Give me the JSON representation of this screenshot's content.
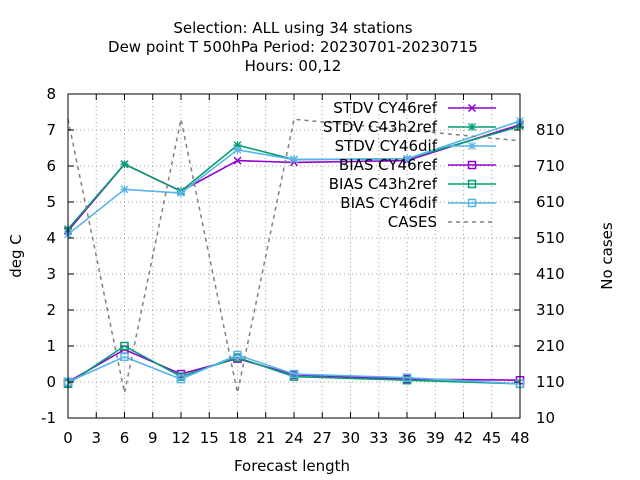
{
  "chart_data": {
    "type": "line",
    "title_lines": [
      "Selection: ALL using    34 stations",
      "Dew point T 500hPa   Period: 20230701-20230715",
      "Hours:  00,12"
    ],
    "xlabel": "Forecast length",
    "ylabel": "deg C",
    "y2label": "No cases",
    "xlim": [
      0,
      48
    ],
    "ylim": [
      -1,
      8
    ],
    "y2lim": [
      10,
      910
    ],
    "xticks": [
      0,
      3,
      6,
      9,
      12,
      15,
      18,
      21,
      24,
      27,
      30,
      33,
      36,
      39,
      42,
      45,
      48
    ],
    "yticks": [
      -1,
      0,
      1,
      2,
      3,
      4,
      5,
      6,
      7,
      8
    ],
    "y2ticks": [
      10,
      110,
      210,
      310,
      410,
      510,
      610,
      710,
      810
    ],
    "grid": true,
    "legend_position": "top-right",
    "series": [
      {
        "name": "STDV CY46ref",
        "color": "#9400d3",
        "marker": "x",
        "axis": "y1",
        "x": [
          0,
          6,
          12,
          18,
          24,
          36,
          48
        ],
        "y": [
          4.2,
          6.05,
          5.3,
          6.15,
          6.1,
          6.15,
          7.15
        ]
      },
      {
        "name": "STDV C43h2ref",
        "color": "#009e73",
        "marker": "star",
        "axis": "y1",
        "x": [
          0,
          6,
          12,
          18,
          24,
          36,
          48
        ],
        "y": [
          4.25,
          6.05,
          5.3,
          6.58,
          6.18,
          6.2,
          7.1
        ]
      },
      {
        "name": "STDV CY46dif",
        "color": "#56b4e9",
        "marker": "star",
        "axis": "y1",
        "x": [
          0,
          6,
          12,
          18,
          24,
          36,
          48
        ],
        "y": [
          4.1,
          5.35,
          5.25,
          6.45,
          6.18,
          6.2,
          7.25
        ]
      },
      {
        "name": "BIAS CY46ref",
        "color": "#9400d3",
        "marker": "square",
        "axis": "y1",
        "x": [
          0,
          6,
          12,
          18,
          24,
          36,
          48
        ],
        "y": [
          0.0,
          0.9,
          0.22,
          0.65,
          0.2,
          0.08,
          0.05
        ]
      },
      {
        "name": "BIAS C43h2ref",
        "color": "#009e73",
        "marker": "square",
        "axis": "y1",
        "x": [
          0,
          6,
          12,
          18,
          24,
          36,
          48
        ],
        "y": [
          -0.05,
          1.0,
          0.15,
          0.68,
          0.15,
          0.05,
          -0.05
        ]
      },
      {
        "name": "BIAS CY46dif",
        "color": "#56b4e9",
        "marker": "square",
        "axis": "y1",
        "x": [
          0,
          6,
          12,
          18,
          24,
          36,
          48
        ],
        "y": [
          0.0,
          0.7,
          0.08,
          0.75,
          0.22,
          0.12,
          -0.05
        ]
      },
      {
        "name": "CASES",
        "color": "#808080",
        "marker": "none",
        "dashed": true,
        "axis": "y2",
        "x": [
          0,
          6,
          12,
          18,
          24,
          48
        ],
        "y": [
          840,
          80,
          840,
          80,
          840,
          780
        ]
      }
    ]
  }
}
